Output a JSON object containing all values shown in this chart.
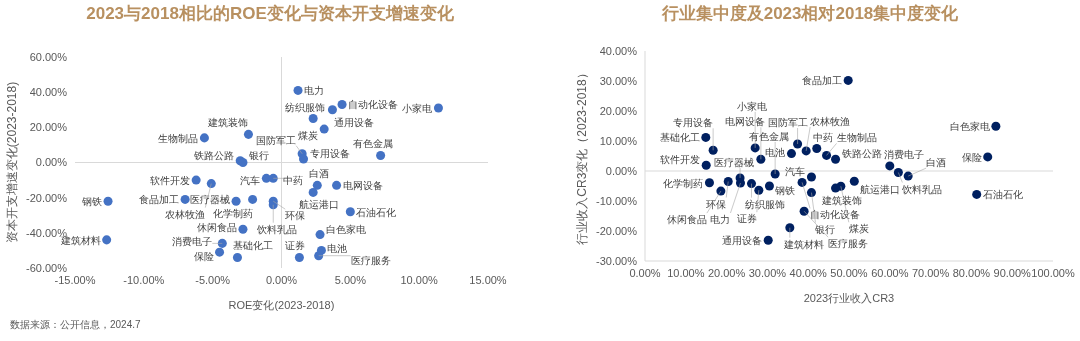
{
  "chart_data": [
    {
      "type": "scatter",
      "title": "2023与2018相比的ROE变化与资本开支增速变化",
      "xlabel": "ROE变化(2023-2018)",
      "ylabel": "资本开支增速变化(2023-2018)",
      "xlim": [
        -15,
        15
      ],
      "xticks": [
        {
          "value": -15,
          "label": "-15.00%"
        },
        {
          "value": -10,
          "label": "-10.00%"
        },
        {
          "value": -5,
          "label": "-5.00%"
        },
        {
          "value": 0,
          "label": "0.00%"
        },
        {
          "value": 5,
          "label": "5.00%"
        },
        {
          "value": 10,
          "label": "10.00%"
        },
        {
          "value": 15,
          "label": "15.00%"
        }
      ],
      "ylim": [
        -60,
        60
      ],
      "yticks": [
        {
          "value": -60,
          "label": "-60.00%"
        },
        {
          "value": -40,
          "label": "-40.00%"
        },
        {
          "value": -20,
          "label": "-20.00%"
        },
        {
          "value": 0,
          "label": "0.00%"
        },
        {
          "value": 20,
          "label": "20.00%"
        },
        {
          "value": 40,
          "label": "40.00%"
        },
        {
          "value": 60,
          "label": "60.00%"
        }
      ],
      "ref_lines": [
        {
          "axis": "y",
          "value": 0,
          "color": "#d9d9d9"
        },
        {
          "axis": "x",
          "value": 0,
          "color": "#d9d9d9"
        }
      ],
      "annotations": [
        "数据来源：公开信息，2024.7"
      ],
      "series": [
        {
          "name": "生物制品",
          "color": "#4472c4",
          "x": [
            -5.6
          ],
          "values": [
            14
          ]
        },
        {
          "name": "建筑装饰",
          "color": "#4472c4",
          "x": [
            -2.4
          ],
          "values": [
            16
          ]
        },
        {
          "name": "铁路公路",
          "color": "#4472c4",
          "x": [
            -3.0
          ],
          "values": [
            1
          ]
        },
        {
          "name": "银行",
          "color": "#4472c4",
          "x": [
            -2.8
          ],
          "values": [
            0
          ]
        },
        {
          "name": "软件开发",
          "color": "#4472c4",
          "x": [
            -6.2
          ],
          "values": [
            -10
          ]
        },
        {
          "name": "农林牧渔",
          "color": "#4472c4",
          "x": [
            -5.1
          ],
          "values": [
            -12
          ]
        },
        {
          "name": "汽车",
          "color": "#4472c4",
          "x": [
            -1.1
          ],
          "values": [
            -9
          ]
        },
        {
          "name": "中药",
          "color": "#4472c4",
          "x": [
            -0.6
          ],
          "values": [
            -9
          ]
        },
        {
          "name": "钢铁",
          "color": "#4472c4",
          "x": [
            -12.6
          ],
          "values": [
            -22
          ]
        },
        {
          "name": "食品加工",
          "color": "#4472c4",
          "x": [
            -7.0
          ],
          "values": [
            -21
          ]
        },
        {
          "name": "医疗器械",
          "color": "#4472c4",
          "x": [
            -3.3
          ],
          "values": [
            -22
          ]
        },
        {
          "name": "化学制药",
          "color": "#4472c4",
          "x": [
            -2.1
          ],
          "values": [
            -21
          ]
        },
        {
          "name": "环保",
          "color": "#4472c4",
          "x": [
            -0.6
          ],
          "values": [
            -22
          ]
        },
        {
          "name": "饮料乳品",
          "color": "#4472c4",
          "x": [
            -0.6
          ],
          "values": [
            -24
          ]
        },
        {
          "name": "建筑材料",
          "color": "#4472c4",
          "x": [
            -12.7
          ],
          "values": [
            -44
          ]
        },
        {
          "name": "休闲食品",
          "color": "#4472c4",
          "x": [
            -2.8
          ],
          "values": [
            -38
          ]
        },
        {
          "name": "消费电子",
          "color": "#4472c4",
          "x": [
            -4.3
          ],
          "values": [
            -46
          ]
        },
        {
          "name": "保险",
          "color": "#4472c4",
          "x": [
            -4.5
          ],
          "values": [
            -51
          ]
        },
        {
          "name": "基础化工",
          "color": "#4472c4",
          "x": [
            -3.2
          ],
          "values": [
            -54
          ]
        },
        {
          "name": "电力",
          "color": "#4472c4",
          "x": [
            1.2
          ],
          "values": [
            41
          ]
        },
        {
          "name": "自动化设备",
          "color": "#4472c4",
          "x": [
            4.4
          ],
          "values": [
            33
          ]
        },
        {
          "name": "通用设备",
          "color": "#4472c4",
          "x": [
            3.7
          ],
          "values": [
            30
          ]
        },
        {
          "name": "小家电",
          "color": "#4472c4",
          "x": [
            11.4
          ],
          "values": [
            31
          ]
        },
        {
          "name": "纺织服饰",
          "color": "#4472c4",
          "x": [
            2.3
          ],
          "values": [
            25
          ]
        },
        {
          "name": "煤炭",
          "color": "#4472c4",
          "x": [
            3.1
          ],
          "values": [
            19
          ]
        },
        {
          "name": "国防军工",
          "color": "#4472c4",
          "x": [
            1.5
          ],
          "values": [
            5
          ]
        },
        {
          "name": "专用设备",
          "color": "#4472c4",
          "x": [
            1.6
          ],
          "values": [
            2
          ]
        },
        {
          "name": "有色金属",
          "color": "#4472c4",
          "x": [
            7.2
          ],
          "values": [
            4
          ]
        },
        {
          "name": "白酒",
          "color": "#4472c4",
          "x": [
            2.6
          ],
          "values": [
            -13
          ]
        },
        {
          "name": "电网设备",
          "color": "#4472c4",
          "x": [
            4.0
          ],
          "values": [
            -13
          ]
        },
        {
          "name": "航运港口",
          "color": "#4472c4",
          "x": [
            2.3
          ],
          "values": [
            -17
          ]
        },
        {
          "name": "石油石化",
          "color": "#4472c4",
          "x": [
            5.0
          ],
          "values": [
            -28
          ]
        },
        {
          "name": "白色家电",
          "color": "#4472c4",
          "x": [
            2.8
          ],
          "values": [
            -41
          ]
        },
        {
          "name": "电池",
          "color": "#4472c4",
          "x": [
            2.9
          ],
          "values": [
            -50
          ]
        },
        {
          "name": "医疗服务",
          "color": "#4472c4",
          "x": [
            2.7
          ],
          "values": [
            -53
          ]
        },
        {
          "name": "证券",
          "color": "#4472c4",
          "x": [
            1.3
          ],
          "values": [
            -54
          ]
        }
      ]
    },
    {
      "type": "scatter",
      "title": "行业集中度及2023相对2018集中度变化",
      "xlabel": "2023行业收入CR3",
      "ylabel": "行业收入CR3变化（2023-2018）",
      "xlim": [
        0,
        100
      ],
      "xticks": [
        {
          "value": 0,
          "label": "0.00%"
        },
        {
          "value": 10,
          "label": "10.00%"
        },
        {
          "value": 20,
          "label": "20.00%"
        },
        {
          "value": 30,
          "label": "30.00%"
        },
        {
          "value": 40,
          "label": "40.00%"
        },
        {
          "value": 50,
          "label": "50.00%"
        },
        {
          "value": 60,
          "label": "60.00%"
        },
        {
          "value": 70,
          "label": "70.00%"
        },
        {
          "value": 80,
          "label": "80.00%"
        },
        {
          "value": 90,
          "label": "90.00%"
        },
        {
          "value": 100,
          "label": "100.00%"
        }
      ],
      "ylim": [
        -30,
        40
      ],
      "yticks": [
        {
          "value": -30,
          "label": "-30.00%"
        },
        {
          "value": -20,
          "label": "-20.00%"
        },
        {
          "value": -10,
          "label": "-10.00%"
        },
        {
          "value": 0,
          "label": "0.00%"
        },
        {
          "value": 10,
          "label": "10.00%"
        },
        {
          "value": 20,
          "label": "20.00%"
        },
        {
          "value": 30,
          "label": "30.00%"
        },
        {
          "value": 40,
          "label": "40.00%"
        }
      ],
      "ref_lines": [
        {
          "axis": "y",
          "value": 0,
          "color": "#d9d9d9"
        }
      ],
      "series": [
        {
          "name": "基础化工",
          "color": "#002060",
          "x": [
            14.9
          ],
          "values": [
            11.2
          ]
        },
        {
          "name": "专用设备",
          "color": "#002060",
          "x": [
            16.7
          ],
          "values": [
            6.9
          ]
        },
        {
          "name": "软件开发",
          "color": "#002060",
          "x": [
            15.0
          ],
          "values": [
            1.9
          ]
        },
        {
          "name": "小家电",
          "color": "#002060",
          "x": [
            27.0
          ],
          "values": [
            7.7
          ]
        },
        {
          "name": "国防军工",
          "color": "#002060",
          "x": [
            37.4
          ],
          "values": [
            9.0
          ]
        },
        {
          "name": "电网设备",
          "color": "#002060",
          "x": [
            28.4
          ],
          "values": [
            3.9
          ]
        },
        {
          "name": "化学制药",
          "color": "#002060",
          "x": [
            15.8
          ],
          "values": [
            -3.9
          ]
        },
        {
          "name": "休闲食品",
          "color": "#002060",
          "x": [
            18.6
          ],
          "values": [
            -6.7
          ]
        },
        {
          "name": "环保",
          "color": "#002060",
          "x": [
            20.4
          ],
          "values": [
            -3.5
          ]
        },
        {
          "name": "医疗器械",
          "color": "#002060",
          "x": [
            23.3
          ],
          "values": [
            -2.3
          ]
        },
        {
          "name": "电力",
          "color": "#002060",
          "x": [
            23.4
          ],
          "values": [
            -4.0
          ]
        },
        {
          "name": "纺织服饰",
          "color": "#002060",
          "x": [
            26.1
          ],
          "values": [
            -4.2
          ]
        },
        {
          "name": "证券",
          "color": "#002060",
          "x": [
            27.9
          ],
          "values": [
            -6.4
          ]
        },
        {
          "name": "钢铁",
          "color": "#002060",
          "x": [
            30.5
          ],
          "values": [
            -5.0
          ]
        },
        {
          "name": "有色金属",
          "color": "#002060",
          "x": [
            31.9
          ],
          "values": [
            -1.0
          ]
        },
        {
          "name": "汽车",
          "color": "#002060",
          "x": [
            40.8
          ],
          "values": [
            -2.0
          ]
        },
        {
          "name": "自动化设备",
          "color": "#002060",
          "x": [
            38.5
          ],
          "values": [
            -3.8
          ]
        },
        {
          "name": "银行",
          "color": "#002060",
          "x": [
            40.8
          ],
          "values": [
            -7.2
          ]
        },
        {
          "name": "医疗服务",
          "color": "#002060",
          "x": [
            39.0
          ],
          "values": [
            -13.4
          ]
        },
        {
          "name": "建筑材料",
          "color": "#002060",
          "x": [
            35.5
          ],
          "values": [
            -18.9
          ]
        },
        {
          "name": "通用设备",
          "color": "#002060",
          "x": [
            30.2
          ],
          "values": [
            -23.1
          ]
        },
        {
          "name": "食品加工",
          "color": "#002060",
          "x": [
            49.8
          ],
          "values": [
            30.2
          ]
        },
        {
          "name": "白色家电",
          "color": "#002060",
          "x": [
            86.0
          ],
          "values": [
            14.9
          ]
        },
        {
          "name": "保险",
          "color": "#002060",
          "x": [
            84.0
          ],
          "values": [
            4.7
          ]
        },
        {
          "name": "石油石化",
          "color": "#002060",
          "x": [
            81.3
          ],
          "values": [
            -7.8
          ]
        },
        {
          "name": "消费电子",
          "color": "#002060",
          "x": [
            60.0
          ],
          "values": [
            1.7
          ]
        },
        {
          "name": "饮料乳品",
          "color": "#002060",
          "x": [
            62.1
          ],
          "values": [
            -0.5
          ]
        },
        {
          "name": "白酒",
          "color": "#002060",
          "x": [
            64.5
          ],
          "values": [
            -1.7
          ]
        },
        {
          "name": "农林牧渔",
          "color": "#002060",
          "x": [
            39.5
          ],
          "values": [
            6.7
          ]
        },
        {
          "name": "中药",
          "color": "#002060",
          "x": [
            42.1
          ],
          "values": [
            7.5
          ]
        },
        {
          "name": "生物制品",
          "color": "#002060",
          "x": [
            44.5
          ],
          "values": [
            5.2
          ]
        },
        {
          "name": "铁路公路",
          "color": "#002060",
          "x": [
            46.7
          ],
          "values": [
            3.9
          ]
        },
        {
          "name": "电池",
          "color": "#002060",
          "x": [
            35.9
          ],
          "values": [
            5.8
          ]
        },
        {
          "name": "航运港口",
          "color": "#002060",
          "x": [
            51.3
          ],
          "values": [
            -3.4
          ]
        },
        {
          "name": "煤炭",
          "color": "#002060",
          "x": [
            48.0
          ],
          "values": [
            -5.1
          ]
        },
        {
          "name": "建筑装饰",
          "color": "#002060",
          "x": [
            46.7
          ],
          "values": [
            -5.7
          ]
        }
      ]
    }
  ]
}
